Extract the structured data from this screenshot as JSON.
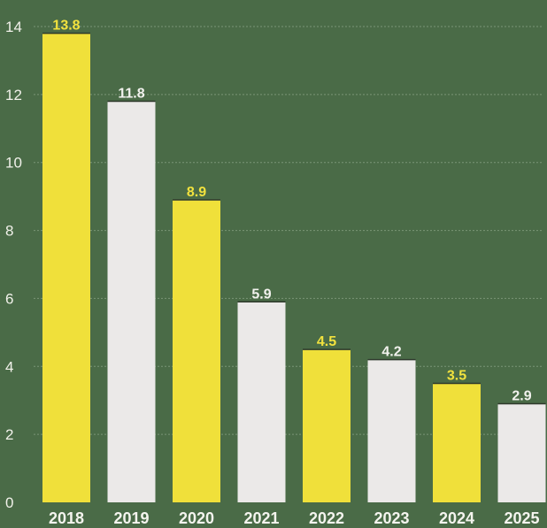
{
  "chart_data": {
    "type": "bar",
    "categories": [
      "2018",
      "2019",
      "2020",
      "2021",
      "2022",
      "2023",
      "2024",
      "2025"
    ],
    "values": [
      13.8,
      11.8,
      8.9,
      5.9,
      4.5,
      4.2,
      3.5,
      2.9
    ],
    "data_labels": [
      "13.8",
      "11.8",
      "8.9",
      "5.9",
      "4.5",
      "4.2",
      "3.5",
      "2.9"
    ],
    "ylim": [
      0,
      14
    ],
    "yticks": [
      "0",
      "2",
      "4",
      "6",
      "8",
      "10",
      "12",
      "14"
    ],
    "grid": true,
    "colors": {
      "background": "#4a6b47",
      "bar_yellow": "#f0e03a",
      "bar_white": "#ebe9e8",
      "label_yellow": "#f2e23e",
      "label_white": "#f2f2ee"
    }
  }
}
